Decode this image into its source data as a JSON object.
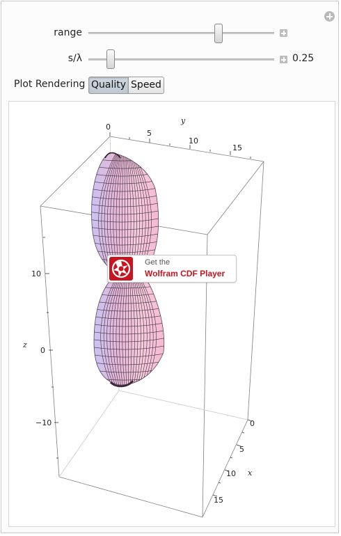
{
  "controls": {
    "range": {
      "label": "range",
      "fraction": 0.71
    },
    "s_lambda": {
      "label": "s/λ",
      "fraction": 0.1,
      "value_text": "0.25"
    }
  },
  "plot_rendering": {
    "label": "Plot Rendering",
    "options": [
      "Quality",
      "Speed"
    ],
    "selected": "Quality"
  },
  "plot": {
    "axes": {
      "y": {
        "label": "y",
        "ticks": [
          "0",
          "5",
          "10",
          "15"
        ]
      },
      "z": {
        "label": "z",
        "ticks": [
          "10",
          "0",
          "−10"
        ]
      },
      "x": {
        "label": "x",
        "ticks": [
          "0",
          "5",
          "10",
          "15"
        ]
      }
    },
    "surface_colors": {
      "light": "#f4c9de",
      "mid": "#e4b0cf",
      "blue_tint": "#c9c2f2",
      "dark": "#7d6a7d"
    }
  },
  "cdf_badge": {
    "line1": "Get the",
    "line2": "Wolfram CDF Player",
    "logo_color": "#c8141e"
  },
  "icons": {
    "panel_add": "add-circle-icon",
    "slider_plus": "plus-box-icon",
    "wolfram_logo": "wolfram-spikey-icon"
  }
}
